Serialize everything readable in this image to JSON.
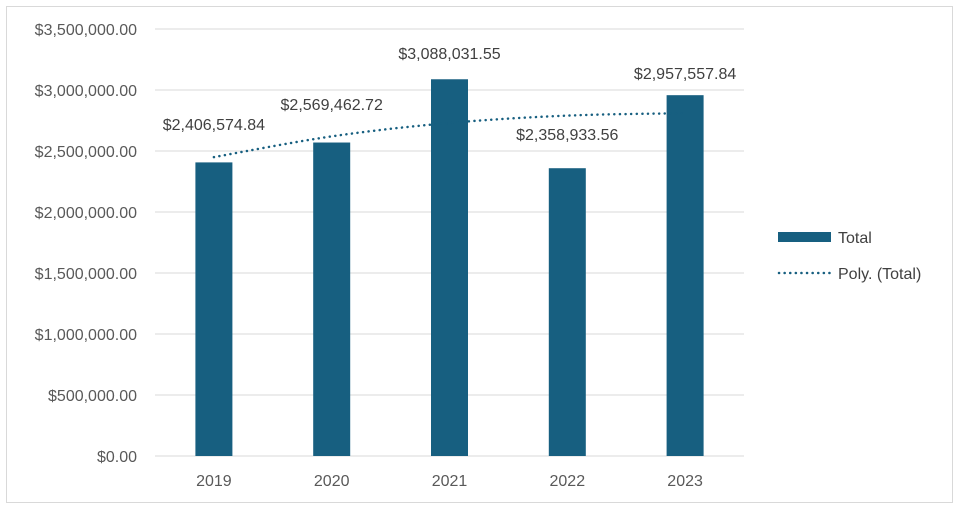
{
  "chart_data": {
    "type": "bar",
    "title": "",
    "xlabel": "",
    "ylabel": "",
    "categories": [
      "2019",
      "2020",
      "2021",
      "2022",
      "2023"
    ],
    "series": [
      {
        "name": "Total",
        "values": [
          2406574.84,
          2569462.72,
          3088031.55,
          2358933.56,
          2957557.84
        ],
        "data_labels": [
          "$2,406,574.84",
          "$2,569,462.72",
          "$3,088,031.55",
          "$2,358,933.56",
          "$2,957,557.84"
        ],
        "color": "#175f80"
      }
    ],
    "trendline": {
      "name": "Poly. (Total)",
      "type": "polynomial",
      "style": "dotted",
      "color": "#175f80",
      "approx_values": [
        2450000,
        2620000,
        2730000,
        2790000,
        2810000
      ]
    },
    "ylim": [
      0,
      3500000
    ],
    "yticks": [
      0,
      500000,
      1000000,
      1500000,
      2000000,
      2500000,
      3000000,
      3500000
    ],
    "ytick_labels": [
      "$0.00",
      "$500,000.00",
      "$1,000,000.00",
      "$1,500,000.00",
      "$2,000,000.00",
      "$2,500,000.00",
      "$3,000,000.00",
      "$3,500,000.00"
    ],
    "grid": true,
    "legend": {
      "position": "right",
      "entries": [
        "Total",
        "Poly. (Total)"
      ]
    }
  },
  "colors": {
    "bar": "#175f80",
    "grid": "#d9d9d9",
    "text": "#595959"
  }
}
